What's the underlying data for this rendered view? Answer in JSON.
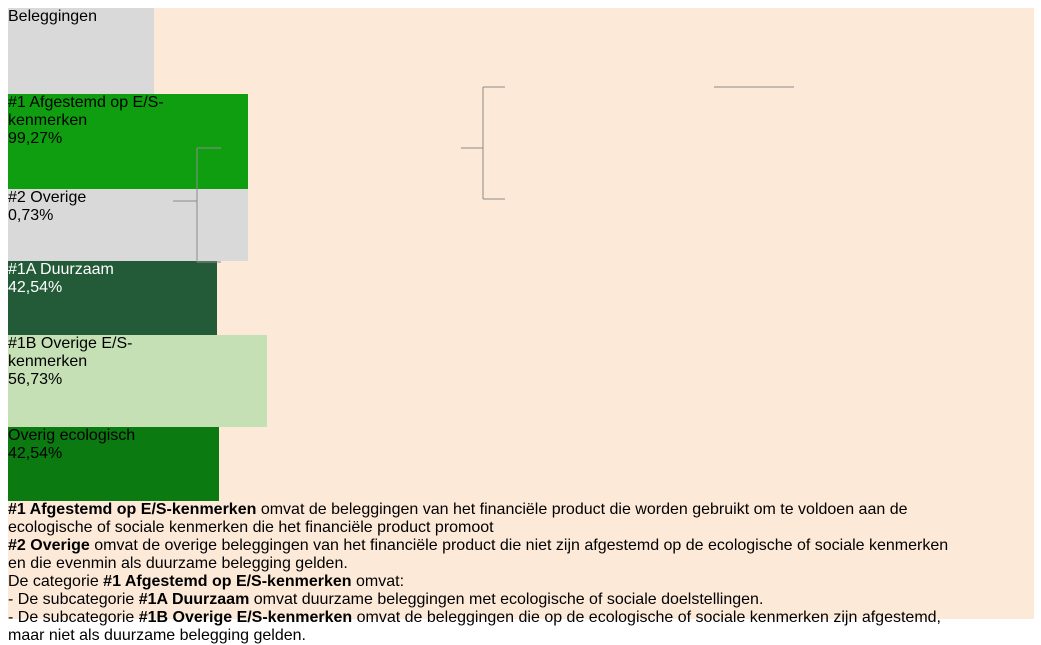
{
  "nodes": [
    {
      "label": [
        "Beleggingen"
      ]
    },
    {
      "label": [
        "#1 Afgestemd op E/S-",
        "kenmerken"
      ],
      "value": "99,27%"
    },
    {
      "label": [
        "#2 Overige"
      ],
      "value": "0,73%"
    },
    {
      "label": [
        "#1A Duurzaam"
      ],
      "value": "42,54%"
    },
    {
      "label": [
        "#1B Overige E/S-",
        "kenmerken"
      ],
      "value": "56,73%"
    },
    {
      "label": [
        "Overig ecologisch"
      ],
      "value": "42,54%"
    }
  ],
  "notes": [
    [
      [
        {
          "text": "#1 Afgestemd op E/S-kenmerken",
          "bold": true
        },
        {
          "text": " omvat de beleggingen van het financiële product die worden gebruikt om te voldoen aan de"
        }
      ],
      [
        {
          "text": "ecologische of sociale kenmerken die het financiële product promoot"
        }
      ]
    ],
    [
      [
        {
          "text": "#2 Overige",
          "bold": true
        },
        {
          "text": " omvat de overige beleggingen van het financiële product die niet zijn afgestemd op de ecologische of sociale kenmerken"
        }
      ],
      [
        {
          "text": "en die evenmin als duurzame belegging gelden."
        }
      ]
    ],
    [
      [
        {
          "text": "De categorie "
        },
        {
          "text": "#1 Afgestemd op E/S-kenmerken",
          "bold": true
        },
        {
          "text": " omvat:"
        }
      ],
      [
        {
          "text": "- De subcategorie "
        },
        {
          "text": "#1A Duurzaam",
          "bold": true
        },
        {
          "text": " omvat duurzame beleggingen met ecologische of sociale doelstellingen."
        }
      ],
      [
        {
          "text": "- De subcategorie "
        },
        {
          "text": "#1B Overige E/S-kenmerken",
          "bold": true
        },
        {
          "text": " omvat de beleggingen die op de ecologische of sociale kenmerken zijn afgestemd,"
        }
      ],
      [
        {
          "text": "maar niet als duurzame belegging gelden."
        }
      ]
    ]
  ]
}
